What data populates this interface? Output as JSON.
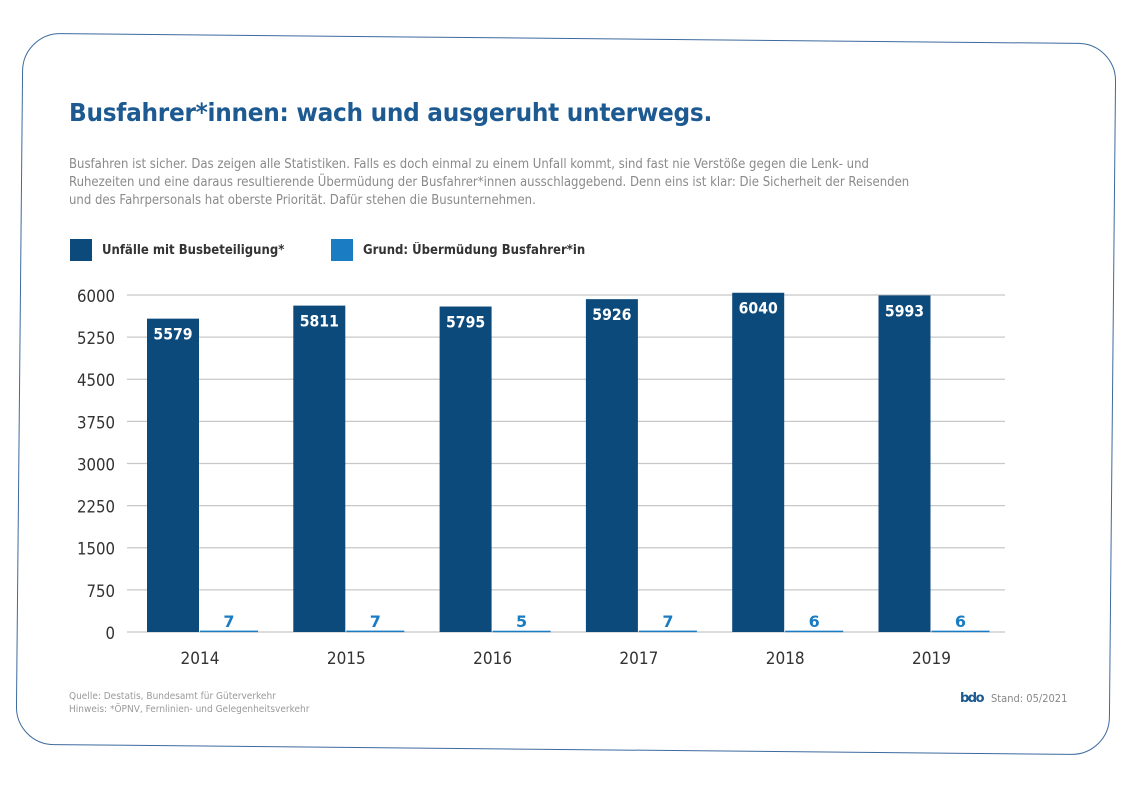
{
  "title": "Busfahrer*innen: wach und ausgeruht unterwegs.",
  "intro": "Busfahren ist sicher. Das zeigen alle Statistiken. Falls es doch einmal zu einem Unfall kommt, sind fast nie Verstöße gegen die Lenk- und Ruhezeiten und eine daraus resultierende Übermüdung der Busfahrer*innen ausschlaggebend. Denn eins ist klar: Die Sicherheit der Reisenden und des Fahrpersonals hat oberste Priorität. Dafür stehen die Busunternehmen.",
  "colors": {
    "primary": "#0d4a7c",
    "secondary": "#1a7dc4",
    "grid": "#c8c8c8",
    "title": "#1d5a91",
    "text": "#333333"
  },
  "footer": {
    "source": "Quelle: Destatis, Bundesamt für Güterverkehr",
    "note": "Hinweis: *ÖPNV, Fernlinien- und Gelegenheitsverkehr",
    "logo": "bdo",
    "stand": "Stand: 05/2021"
  },
  "chart_data": {
    "type": "bar",
    "title": "Busfahrer*innen: wach und ausgeruht unterwegs.",
    "xlabel": "",
    "ylabel": "",
    "categories": [
      "2014",
      "2015",
      "2016",
      "2017",
      "2018",
      "2019"
    ],
    "series": [
      {
        "name": "Unfälle mit Busbeteiligung*",
        "color": "#0d4a7c",
        "values": [
          5579,
          5811,
          5795,
          5926,
          6040,
          5993
        ]
      },
      {
        "name": "Grund: Übermüdung Busfahrer*in",
        "color": "#1a7dc4",
        "values": [
          7,
          7,
          5,
          7,
          6,
          6
        ]
      }
    ],
    "ylim": [
      0,
      6000
    ],
    "yticks": [
      0,
      750,
      1500,
      2250,
      3000,
      3750,
      4500,
      5250,
      6000
    ],
    "grid": true,
    "legend": "top-left",
    "data_labels": true
  }
}
